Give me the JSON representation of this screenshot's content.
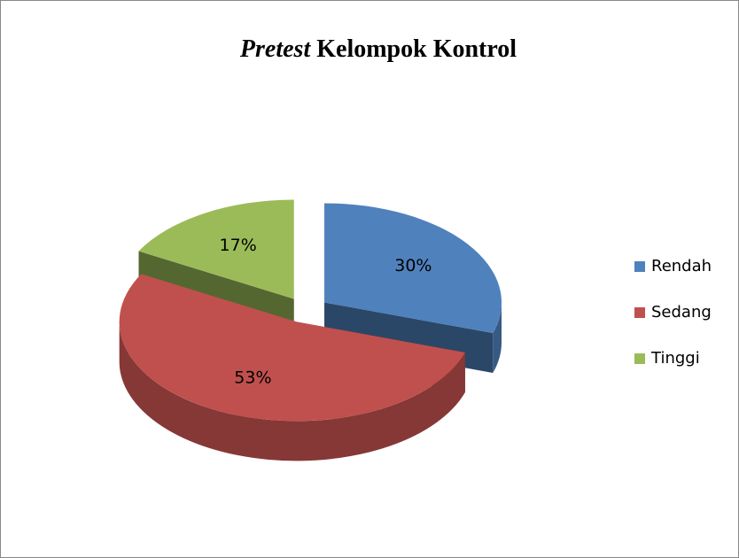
{
  "chart_data": {
    "type": "pie",
    "title": "Pretest Kelompok Kontrol",
    "categories": [
      "Rendah",
      "Sedang",
      "Tinggi"
    ],
    "values": [
      30,
      53,
      17
    ],
    "value_labels": [
      "30%",
      "53%",
      "17%"
    ],
    "colors": [
      "#4f81bd",
      "#c0504d",
      "#9bbb59"
    ],
    "legend": "right"
  }
}
